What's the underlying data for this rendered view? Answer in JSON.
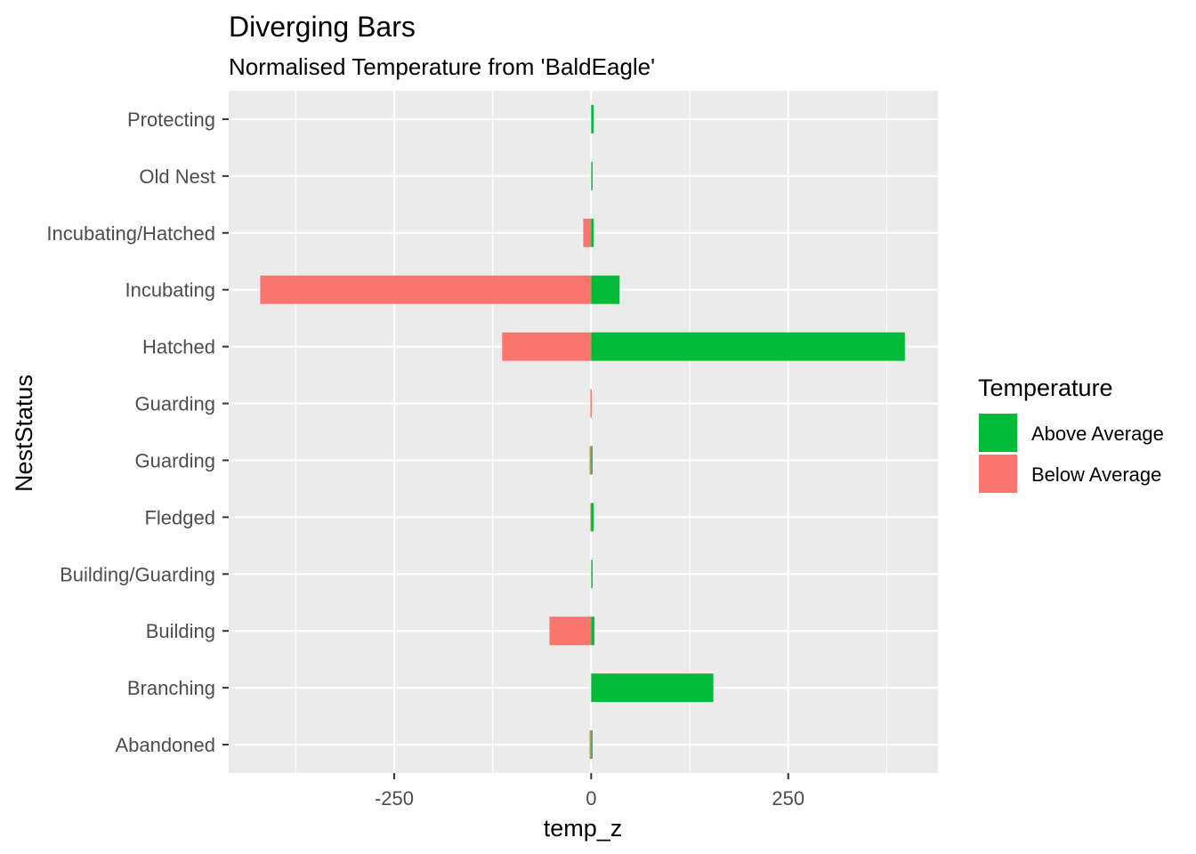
{
  "chart_data": {
    "type": "bar",
    "orientation": "horizontal",
    "stacked": true,
    "title": "Diverging Bars",
    "subtitle": "Normalised Temperature from 'BaldEagle'",
    "xlabel": "temp_z",
    "ylabel": "NestStatus",
    "xlim": [
      -460,
      440
    ],
    "xticks": [
      -250,
      0,
      250
    ],
    "xtick_labels": [
      "-250",
      "0",
      "250"
    ],
    "categories": [
      "Abandoned",
      "Branching",
      "Building",
      "Building/Guarding",
      "Fledged",
      "Guarding",
      "Guarding ",
      "Hatched",
      "Incubating",
      "Incubating/Hatched",
      "Old Nest",
      "Protecting"
    ],
    "series": [
      {
        "name": "Above Average",
        "color": "#00BA38",
        "values": [
          0.5,
          155,
          4,
          1,
          3,
          0.5,
          0,
          398,
          36,
          3,
          1,
          3
        ]
      },
      {
        "name": "Below Average",
        "color": "#F8766D",
        "values": [
          -2,
          0,
          -53,
          0,
          -1,
          -2,
          -1,
          -113,
          -420,
          -10,
          0,
          0
        ]
      }
    ],
    "grid": true,
    "legend": {
      "title": "Temperature",
      "position": "right",
      "entries": [
        "Above Average",
        "Below Average"
      ]
    }
  }
}
